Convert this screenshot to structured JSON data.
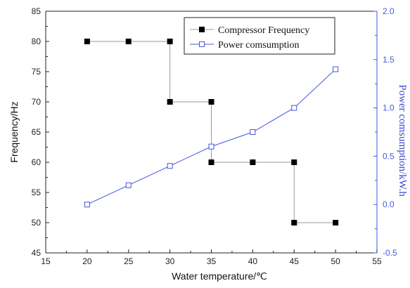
{
  "chart_data": {
    "type": "line",
    "xlabel": "Water temperature/℃",
    "ylabel": "Frequency/Hz",
    "y2label": "Power comsumption/kW.h",
    "xlim": [
      15,
      55
    ],
    "ylim": [
      45,
      85
    ],
    "y2lim": [
      -0.5,
      2.0
    ],
    "x_ticks": [
      "15",
      "20",
      "25",
      "30",
      "35",
      "40",
      "45",
      "50",
      "55"
    ],
    "y_ticks": [
      "45",
      "50",
      "55",
      "60",
      "65",
      "70",
      "75",
      "80",
      "85"
    ],
    "y2_ticks": [
      "-0.5",
      "0.0",
      "0.5",
      "1.0",
      "1.5",
      "2.0"
    ],
    "grid": false,
    "legend_position": "top-right",
    "series": [
      {
        "name": "Compressor Frequency",
        "axis": "left",
        "style": "step",
        "marker": "filled-square",
        "color": "#000000",
        "line_color": "#999999",
        "x": [
          20,
          25,
          30,
          30,
          35,
          35,
          40,
          45,
          45,
          50
        ],
        "y": [
          80,
          80,
          80,
          70,
          70,
          60,
          60,
          60,
          50,
          50
        ]
      },
      {
        "name": "Power comsumption",
        "axis": "right",
        "style": "line",
        "marker": "open-square",
        "color": "#4455e0",
        "x": [
          20,
          25,
          30,
          35,
          40,
          45,
          50
        ],
        "y": [
          0.0,
          0.2,
          0.4,
          0.6,
          0.75,
          1.0,
          1.4
        ]
      }
    ]
  }
}
